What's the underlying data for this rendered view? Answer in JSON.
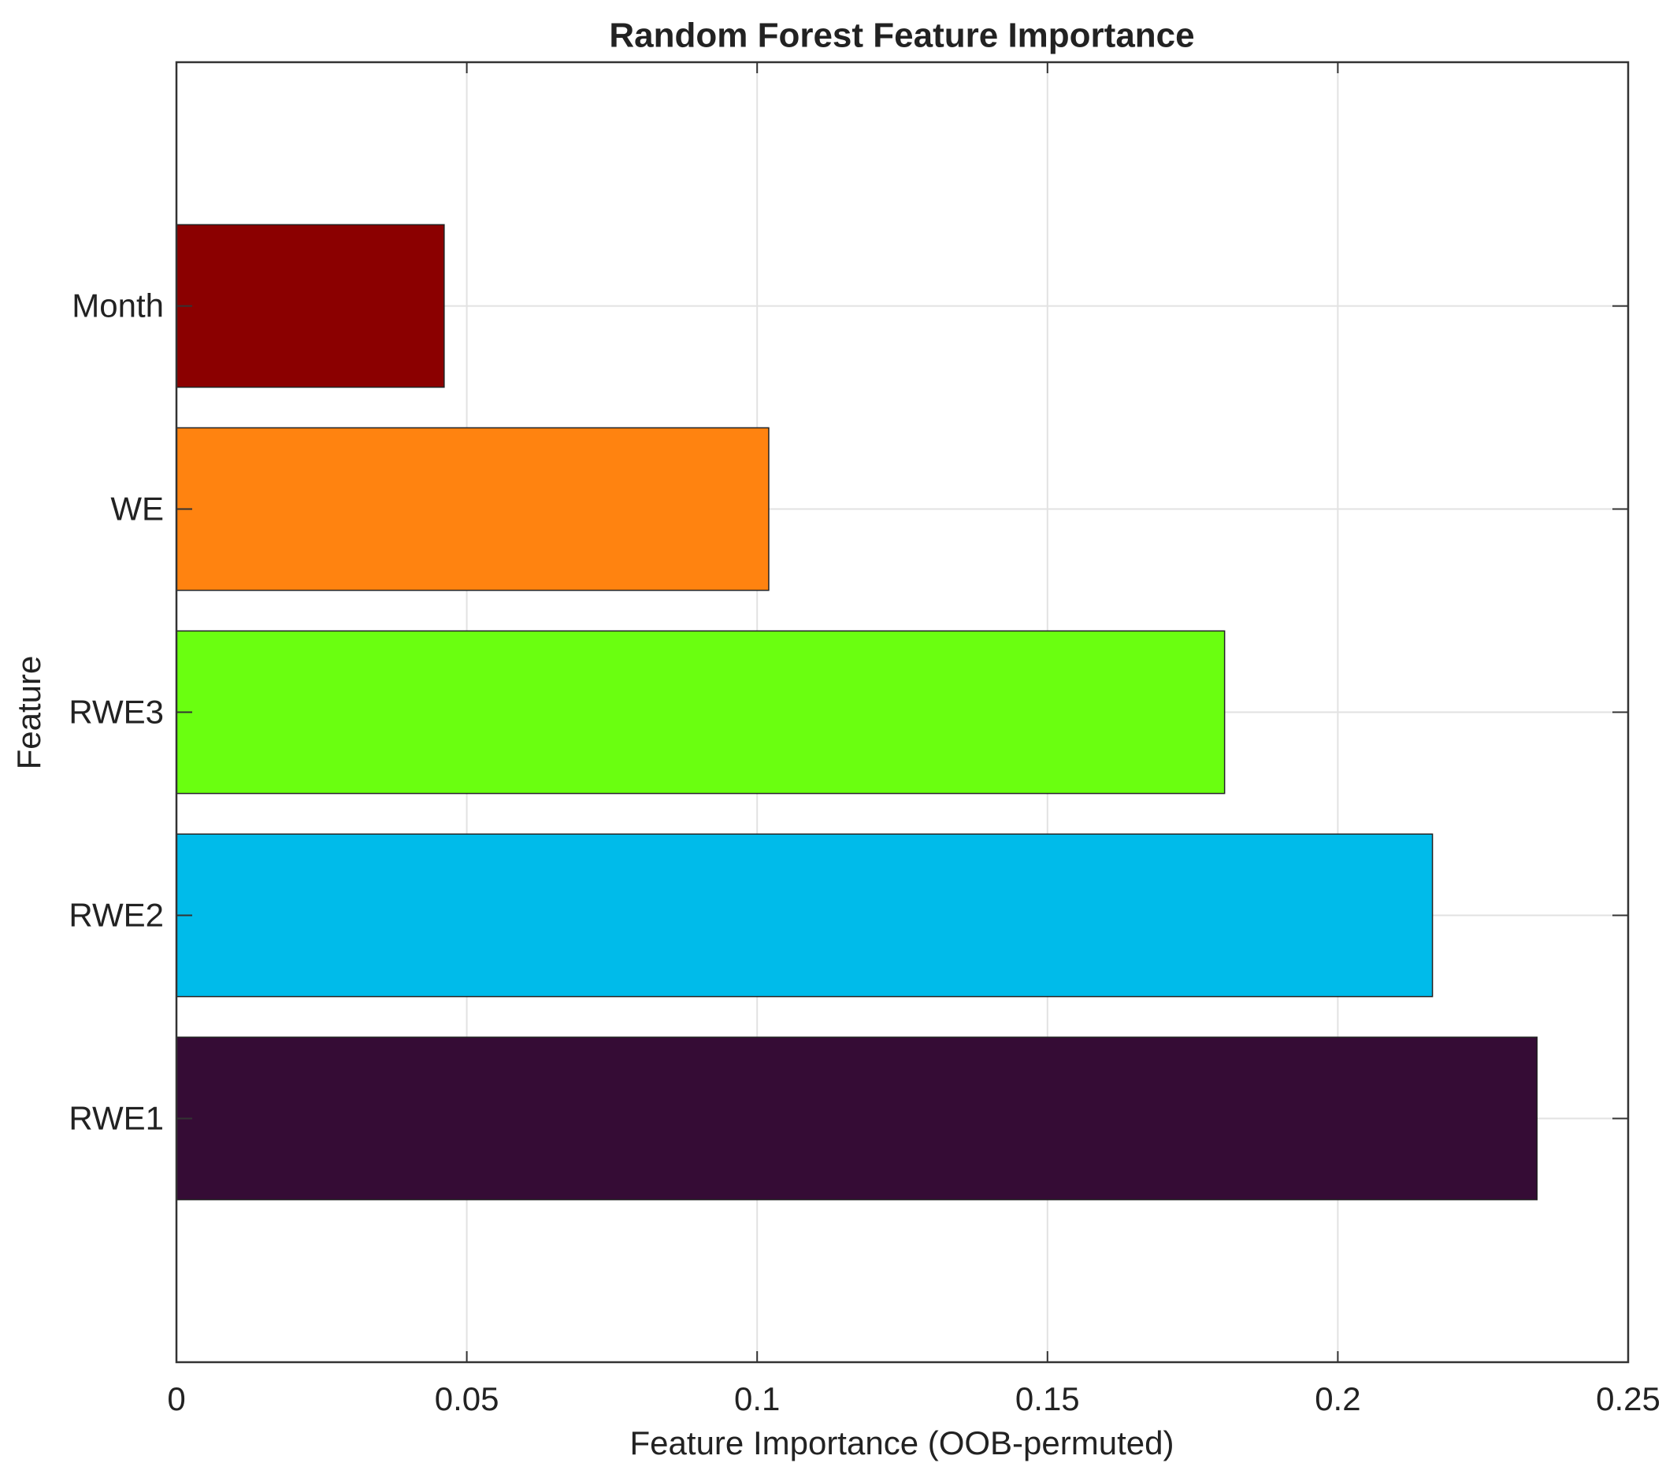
{
  "chart_data": {
    "type": "barh",
    "title": "Random Forest Feature Importance",
    "x_label": "Feature Importance (OOB-permuted)",
    "y_label": "Feature",
    "categories": [
      "RWE1",
      "RWE2",
      "RWE3",
      "WE",
      "Month"
    ],
    "values": [
      0.2343,
      0.2163,
      0.1805,
      0.102,
      0.0461
    ],
    "colors": [
      "#350c35",
      "#00bbea",
      "#6aff10",
      "#ff8310",
      "#8b0000"
    ],
    "xlim": [
      0,
      0.25
    ],
    "xticks": [
      0,
      0.05,
      0.1,
      0.15,
      0.2,
      0.25
    ],
    "grid": true
  }
}
